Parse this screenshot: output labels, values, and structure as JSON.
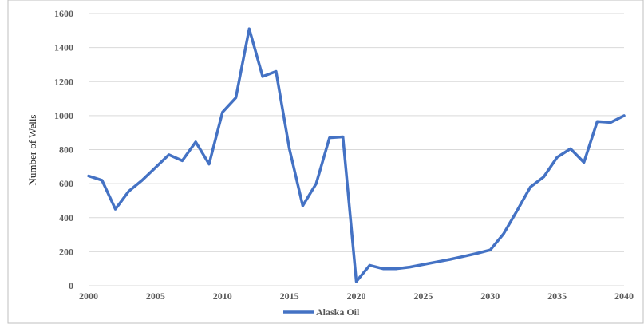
{
  "chart_data": {
    "type": "line",
    "title": "",
    "xlabel": "",
    "ylabel": "Number of Wells",
    "xlim": [
      2000,
      2040
    ],
    "ylim": [
      0,
      1600
    ],
    "x_ticks": [
      2000,
      2005,
      2010,
      2015,
      2020,
      2025,
      2030,
      2035,
      2040
    ],
    "y_ticks": [
      0,
      200,
      400,
      600,
      800,
      1000,
      1200,
      1400,
      1600
    ],
    "grid": "horizontal",
    "legend_position": "bottom",
    "series": [
      {
        "name": "Alaska Oil",
        "color": "#4472C4",
        "x": [
          2000,
          2001,
          2002,
          2003,
          2004,
          2005,
          2006,
          2007,
          2008,
          2009,
          2010,
          2011,
          2012,
          2013,
          2014,
          2015,
          2016,
          2017,
          2018,
          2019,
          2020,
          2021,
          2022,
          2023,
          2024,
          2025,
          2026,
          2027,
          2028,
          2029,
          2030,
          2031,
          2032,
          2033,
          2034,
          2035,
          2036,
          2037,
          2038,
          2039,
          2040
        ],
        "values": [
          645,
          620,
          450,
          555,
          620,
          695,
          770,
          735,
          845,
          715,
          1020,
          1105,
          1510,
          1230,
          1260,
          805,
          470,
          600,
          870,
          875,
          25,
          120,
          100,
          100,
          110,
          125,
          140,
          155,
          172,
          190,
          210,
          305,
          440,
          580,
          640,
          755,
          805,
          725,
          965,
          960,
          1000
        ]
      }
    ]
  }
}
